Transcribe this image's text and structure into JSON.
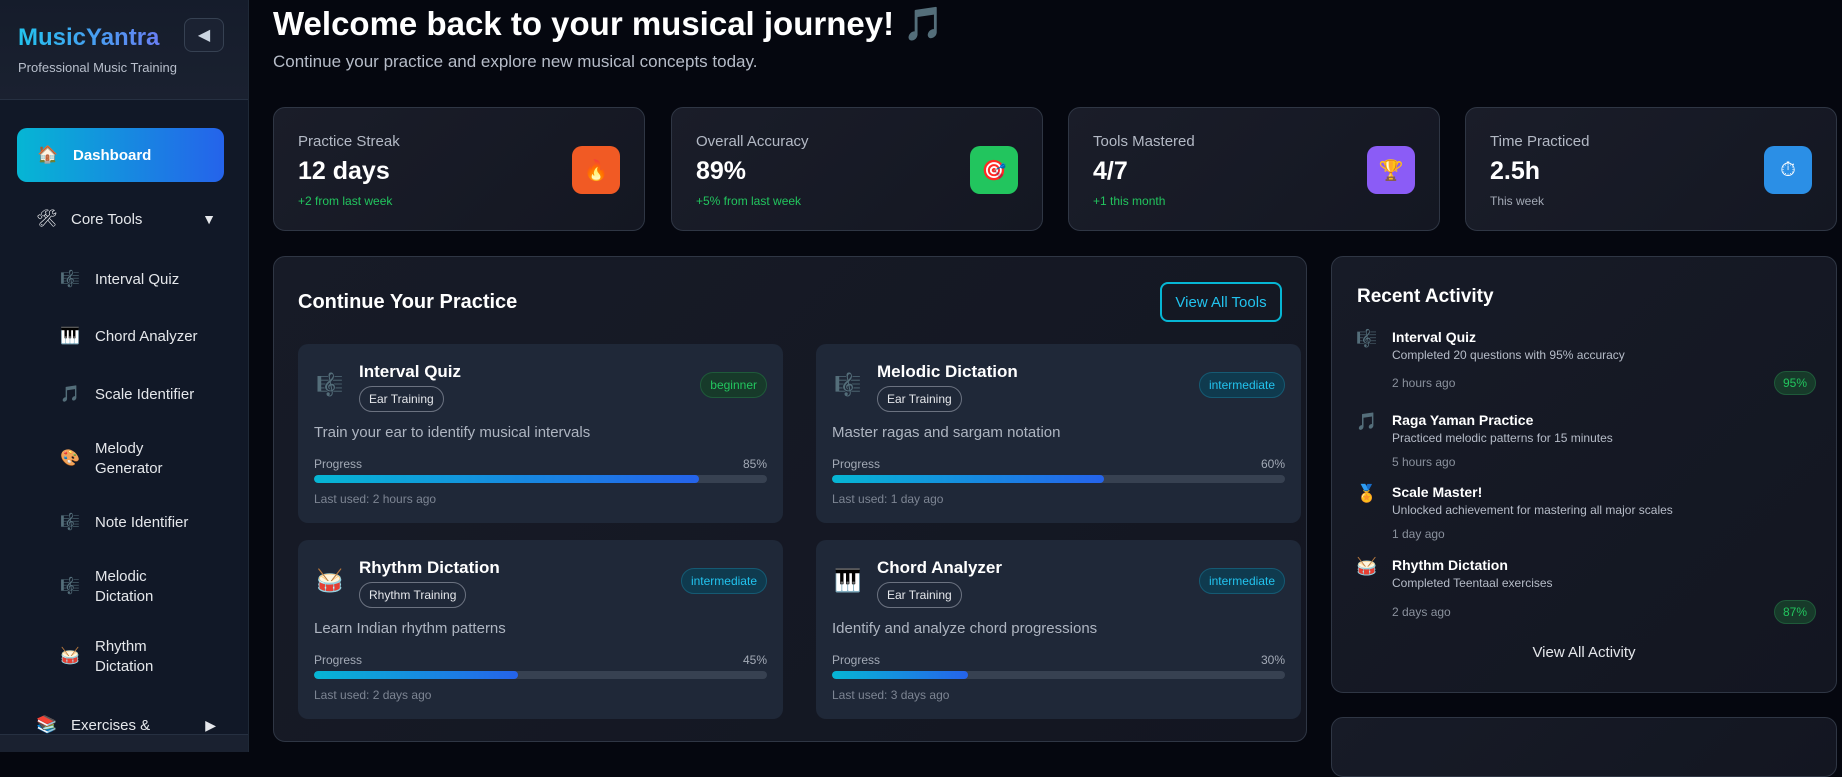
{
  "sidebar": {
    "logo": "MusicYantra",
    "tagline": "Professional Music Training",
    "collapse_icon": "◀",
    "dashboard": {
      "icon": "🏠",
      "label": "Dashboard"
    },
    "core_tools": {
      "icon": "🛠",
      "label": "Core Tools",
      "chevron": "▼"
    },
    "items": [
      {
        "icon": "🎼",
        "label": "Interval Quiz"
      },
      {
        "icon": "🎹",
        "label": "Chord Analyzer"
      },
      {
        "icon": "🎵",
        "label": "Scale Identifier"
      },
      {
        "icon": "🎨",
        "label": "Melody Generator"
      },
      {
        "icon": "🎼",
        "label": "Note Identifier"
      },
      {
        "icon": "🎼",
        "label": "Melodic Dictation"
      },
      {
        "icon": "🥁",
        "label": "Rhythm Dictation"
      }
    ],
    "exercises": {
      "icon": "📚",
      "label": "Exercises &",
      "chevron": "▶"
    }
  },
  "header": {
    "title": "Welcome back to your musical journey! 🎵",
    "subtitle": "Continue your practice and explore new musical concepts today."
  },
  "stats": [
    {
      "label": "Practice Streak",
      "value": "12 days",
      "change": "+2 from last week",
      "icon": "🔥",
      "color": "#f15a24"
    },
    {
      "label": "Overall Accuracy",
      "value": "89%",
      "change": "+5% from last week",
      "icon": "🎯",
      "color": "#22c55e"
    },
    {
      "label": "Tools Mastered",
      "value": "4/7",
      "change": "+1 this month",
      "icon": "🏆",
      "color": "#8b5cf6"
    },
    {
      "label": "Time Practiced",
      "value": "2.5h",
      "change": "This week",
      "icon": "⏱",
      "color": "#2b8fe6"
    }
  ],
  "practice": {
    "title": "Continue Your Practice",
    "view_all": "View All Tools",
    "progress_label": "Progress",
    "tools": [
      {
        "icon": "🎼",
        "name": "Interval Quiz",
        "category": "Ear Training",
        "level": "beginner",
        "desc": "Train your ear to identify musical intervals",
        "progress": 85,
        "progress_text": "85%",
        "last_used": "Last used: 2 hours ago"
      },
      {
        "icon": "🎼",
        "name": "Melodic Dictation",
        "category": "Ear Training",
        "level": "intermediate",
        "desc": "Master ragas and sargam notation",
        "progress": 60,
        "progress_text": "60%",
        "last_used": "Last used: 1 day ago"
      },
      {
        "icon": "🥁",
        "name": "Rhythm Dictation",
        "category": "Rhythm Training",
        "level": "intermediate",
        "desc": "Learn Indian rhythm patterns",
        "progress": 45,
        "progress_text": "45%",
        "last_used": "Last used: 2 days ago"
      },
      {
        "icon": "🎹",
        "name": "Chord Analyzer",
        "category": "Ear Training",
        "level": "intermediate",
        "desc": "Identify and analyze chord progressions",
        "progress": 30,
        "progress_text": "30%",
        "last_used": "Last used: 3 days ago"
      }
    ]
  },
  "activity": {
    "title": "Recent Activity",
    "view_all": "View All Activity",
    "items": [
      {
        "icon": "🎼",
        "title": "Interval Quiz",
        "desc": "Completed 20 questions with 95% accuracy",
        "time": "2 hours ago",
        "score": "95%"
      },
      {
        "icon": "🎵",
        "title": "Raga Yaman Practice",
        "desc": "Practiced melodic patterns for 15 minutes",
        "time": "5 hours ago"
      },
      {
        "icon": "🏅",
        "title": "Scale Master!",
        "desc": "Unlocked achievement for mastering all major scales",
        "time": "1 day ago"
      },
      {
        "icon": "🥁",
        "title": "Rhythm Dictation",
        "desc": "Completed Teentaal exercises",
        "time": "2 days ago",
        "score": "87%"
      }
    ]
  }
}
